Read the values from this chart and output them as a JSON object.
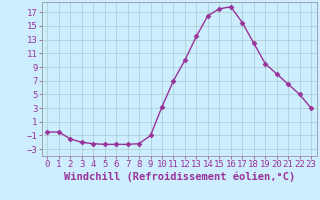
{
  "x": [
    0,
    1,
    2,
    3,
    4,
    5,
    6,
    7,
    8,
    9,
    10,
    11,
    12,
    13,
    14,
    15,
    16,
    17,
    18,
    19,
    20,
    21,
    22,
    23
  ],
  "y": [
    -0.5,
    -0.5,
    -1.5,
    -2.0,
    -2.2,
    -2.3,
    -2.3,
    -2.3,
    -2.2,
    -1.0,
    3.2,
    7.0,
    10.0,
    13.5,
    16.5,
    17.5,
    17.8,
    15.5,
    12.5,
    9.5,
    8.0,
    6.5,
    5.0,
    3.0
  ],
  "line_color": "#993399",
  "marker": "D",
  "marker_size": 2.5,
  "bg_color": "#cceeff",
  "grid_color": "#aacccc",
  "xlabel": "Windchill (Refroidissement éolien,°C)",
  "xlabel_color": "#993399",
  "yticks": [
    -3,
    -1,
    1,
    3,
    5,
    7,
    9,
    11,
    13,
    15,
    17
  ],
  "xticks": [
    0,
    1,
    2,
    3,
    4,
    5,
    6,
    7,
    8,
    9,
    10,
    11,
    12,
    13,
    14,
    15,
    16,
    17,
    18,
    19,
    20,
    21,
    22,
    23
  ],
  "ylim": [
    -4,
    18.5
  ],
  "xlim": [
    -0.5,
    23.5
  ],
  "tick_color": "#993399",
  "tick_fontsize": 6.5,
  "xlabel_fontsize": 7.5,
  "spine_color": "#888888"
}
